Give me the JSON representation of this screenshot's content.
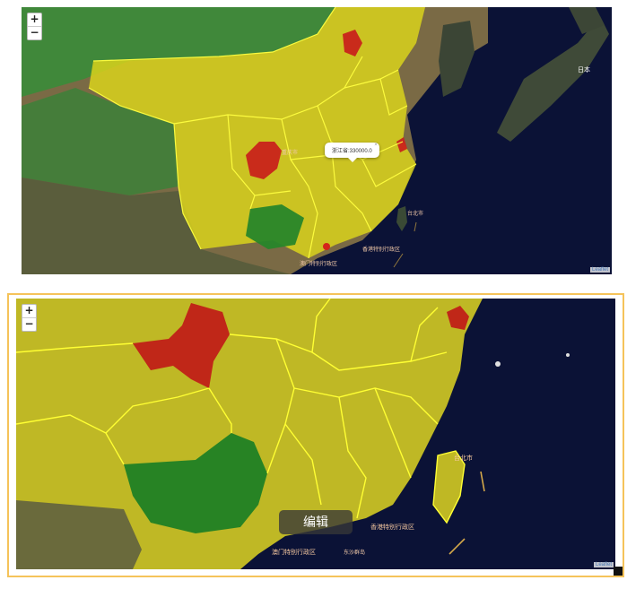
{
  "controls": {
    "zoom_in": "+",
    "zoom_out": "−"
  },
  "attribution": "Leaflet",
  "top_map": {
    "popup_text": "浙江省:330000.0",
    "popup_close": "×",
    "labels": [
      "香港特别行政区",
      "澳门特别行政区",
      "台北市",
      "日本"
    ]
  },
  "bottom_map": {
    "edit_label": "编辑",
    "labels": [
      "香港特别行政区",
      "澳门特别行政区",
      "台北市",
      "东沙群岛"
    ]
  },
  "colors": {
    "highlight_red": "#d4261a",
    "province_yellow": "#e6e600",
    "green_region": "#1f8a1f",
    "border_yellow": "#ffff33",
    "frame_orange": "#f5c35a"
  }
}
